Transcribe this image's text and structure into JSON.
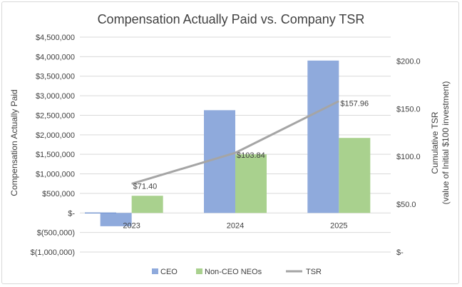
{
  "chart_data": {
    "type": "bar",
    "title": "Compensation Actually Paid vs. Company TSR",
    "categories": [
      "2023",
      "2024",
      "2025"
    ],
    "series": [
      {
        "name": "CEO",
        "type": "bar",
        "axis": "left",
        "color": "#8faadc",
        "values": [
          -340000,
          2630000,
          3900000
        ]
      },
      {
        "name": "Non-CEO NEOs",
        "type": "bar",
        "axis": "left",
        "color": "#a9d18e",
        "values": [
          440000,
          1500000,
          1920000
        ]
      },
      {
        "name": "TSR",
        "type": "line",
        "axis": "right",
        "color": "#a5a5a5",
        "values": [
          71.4,
          103.84,
          157.96
        ],
        "labels": [
          "$71.40",
          "$103.84",
          "$157.96"
        ]
      }
    ],
    "ylabel": "Compensation Actually Paid",
    "y2label": [
      "Cumulative TSR",
      "(value of Initial $100 investment)"
    ],
    "ylim": [
      -1000000,
      4500000
    ],
    "y2lim": [
      0,
      225
    ],
    "yticks": [
      {
        "v": 4500000,
        "l": "$4,500,000"
      },
      {
        "v": 4000000,
        "l": "$4,000,000"
      },
      {
        "v": 3500000,
        "l": "$3,500,000"
      },
      {
        "v": 3000000,
        "l": "$3,000,000"
      },
      {
        "v": 2500000,
        "l": "$2,500,000"
      },
      {
        "v": 2000000,
        "l": "$2,000,000"
      },
      {
        "v": 1500000,
        "l": "$1,500,000"
      },
      {
        "v": 1000000,
        "l": "$1,000,000"
      },
      {
        "v": 500000,
        "l": "$500,000"
      },
      {
        "v": 0,
        "l": "$-"
      },
      {
        "v": -500000,
        "l": "$(500,000)"
      },
      {
        "v": -1000000,
        "l": "$(1,000,000)"
      }
    ],
    "y2ticks": [
      {
        "v": 200,
        "l": "$200.0"
      },
      {
        "v": 150,
        "l": "$150.0"
      },
      {
        "v": 100,
        "l": "$100.0"
      },
      {
        "v": 50,
        "l": "$50.0"
      },
      {
        "v": 0,
        "l": "$-"
      }
    ],
    "grid": true,
    "legend": "bottom"
  }
}
